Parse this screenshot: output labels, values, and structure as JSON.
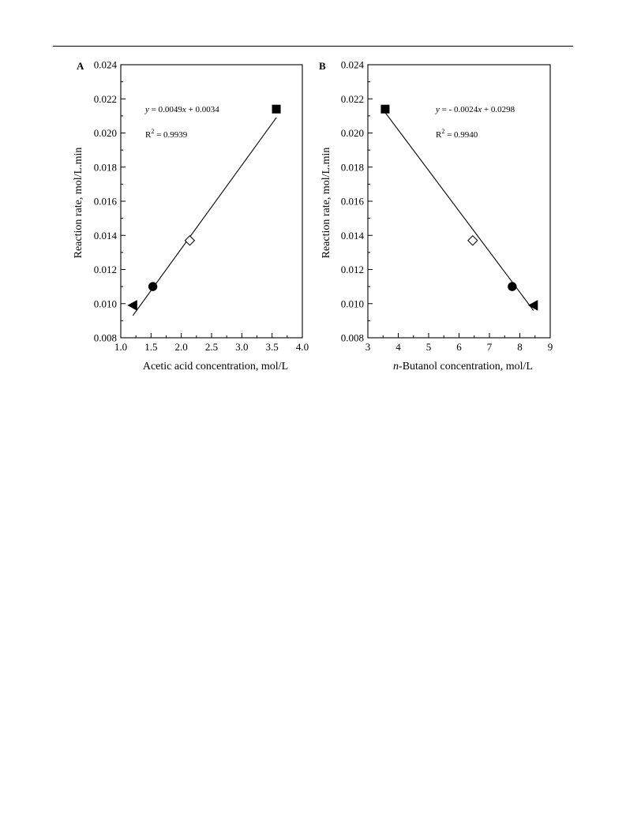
{
  "chart_data": [
    {
      "panel_label": "A",
      "type": "scatter",
      "xlabel": "Acetic acid concentration, mol/L",
      "ylabel": "Reaction rate, mol/L.min",
      "xlim": [
        1.0,
        4.0
      ],
      "ylim": [
        0.008,
        0.024
      ],
      "x_ticks": [
        "1.0",
        "1.5",
        "2.0",
        "2.5",
        "3.0",
        "3.5",
        "4.0"
      ],
      "y_ticks": [
        "0.008",
        "0.010",
        "0.012",
        "0.014",
        "0.016",
        "0.018",
        "0.020",
        "0.022",
        "0.024"
      ],
      "points": [
        {
          "x": 1.2,
          "y": 0.0099,
          "marker": "triangle-left",
          "fill": "black"
        },
        {
          "x": 1.53,
          "y": 0.011,
          "marker": "circle",
          "fill": "black"
        },
        {
          "x": 2.14,
          "y": 0.0137,
          "marker": "diamond",
          "fill": "white"
        },
        {
          "x": 3.57,
          "y": 0.0214,
          "marker": "square",
          "fill": "black"
        }
      ],
      "fit_line": {
        "x0": 1.2,
        "x1": 3.57,
        "y0": 0.0093,
        "y1": 0.0209
      },
      "equation": {
        "prefix": "y",
        "body": " = 0.0049",
        "var": "x",
        "suffix": " + 0.0034"
      },
      "r2": {
        "label": "R",
        "sup": "2",
        "value": " = 0.9939"
      },
      "grid": false
    },
    {
      "panel_label": "B",
      "type": "scatter",
      "xlabel_italic": "n",
      "xlabel": "-Butanol concentration, mol/L",
      "ylabel": "Reaction rate, mol/L.min",
      "xlim": [
        3,
        9
      ],
      "ylim": [
        0.008,
        0.024
      ],
      "x_ticks": [
        "3",
        "4",
        "5",
        "6",
        "7",
        "8",
        "9"
      ],
      "y_ticks": [
        "0.008",
        "0.010",
        "0.012",
        "0.014",
        "0.016",
        "0.018",
        "0.020",
        "0.022",
        "0.024"
      ],
      "points": [
        {
          "x": 3.57,
          "y": 0.0214,
          "marker": "square",
          "fill": "black"
        },
        {
          "x": 6.45,
          "y": 0.0137,
          "marker": "diamond",
          "fill": "white"
        },
        {
          "x": 7.75,
          "y": 0.011,
          "marker": "circle",
          "fill": "black"
        },
        {
          "x": 8.45,
          "y": 0.0099,
          "marker": "triangle-left",
          "fill": "black"
        }
      ],
      "fit_line": {
        "x0": 3.57,
        "x1": 8.45,
        "y0": 0.0212,
        "y1": 0.0096
      },
      "equation": {
        "prefix": "y",
        "body": " = - 0.0024",
        "var": "x",
        "suffix": " + 0.0298"
      },
      "r2": {
        "label": "R",
        "sup": "2",
        "value": " = 0.9940"
      },
      "grid": false
    }
  ]
}
